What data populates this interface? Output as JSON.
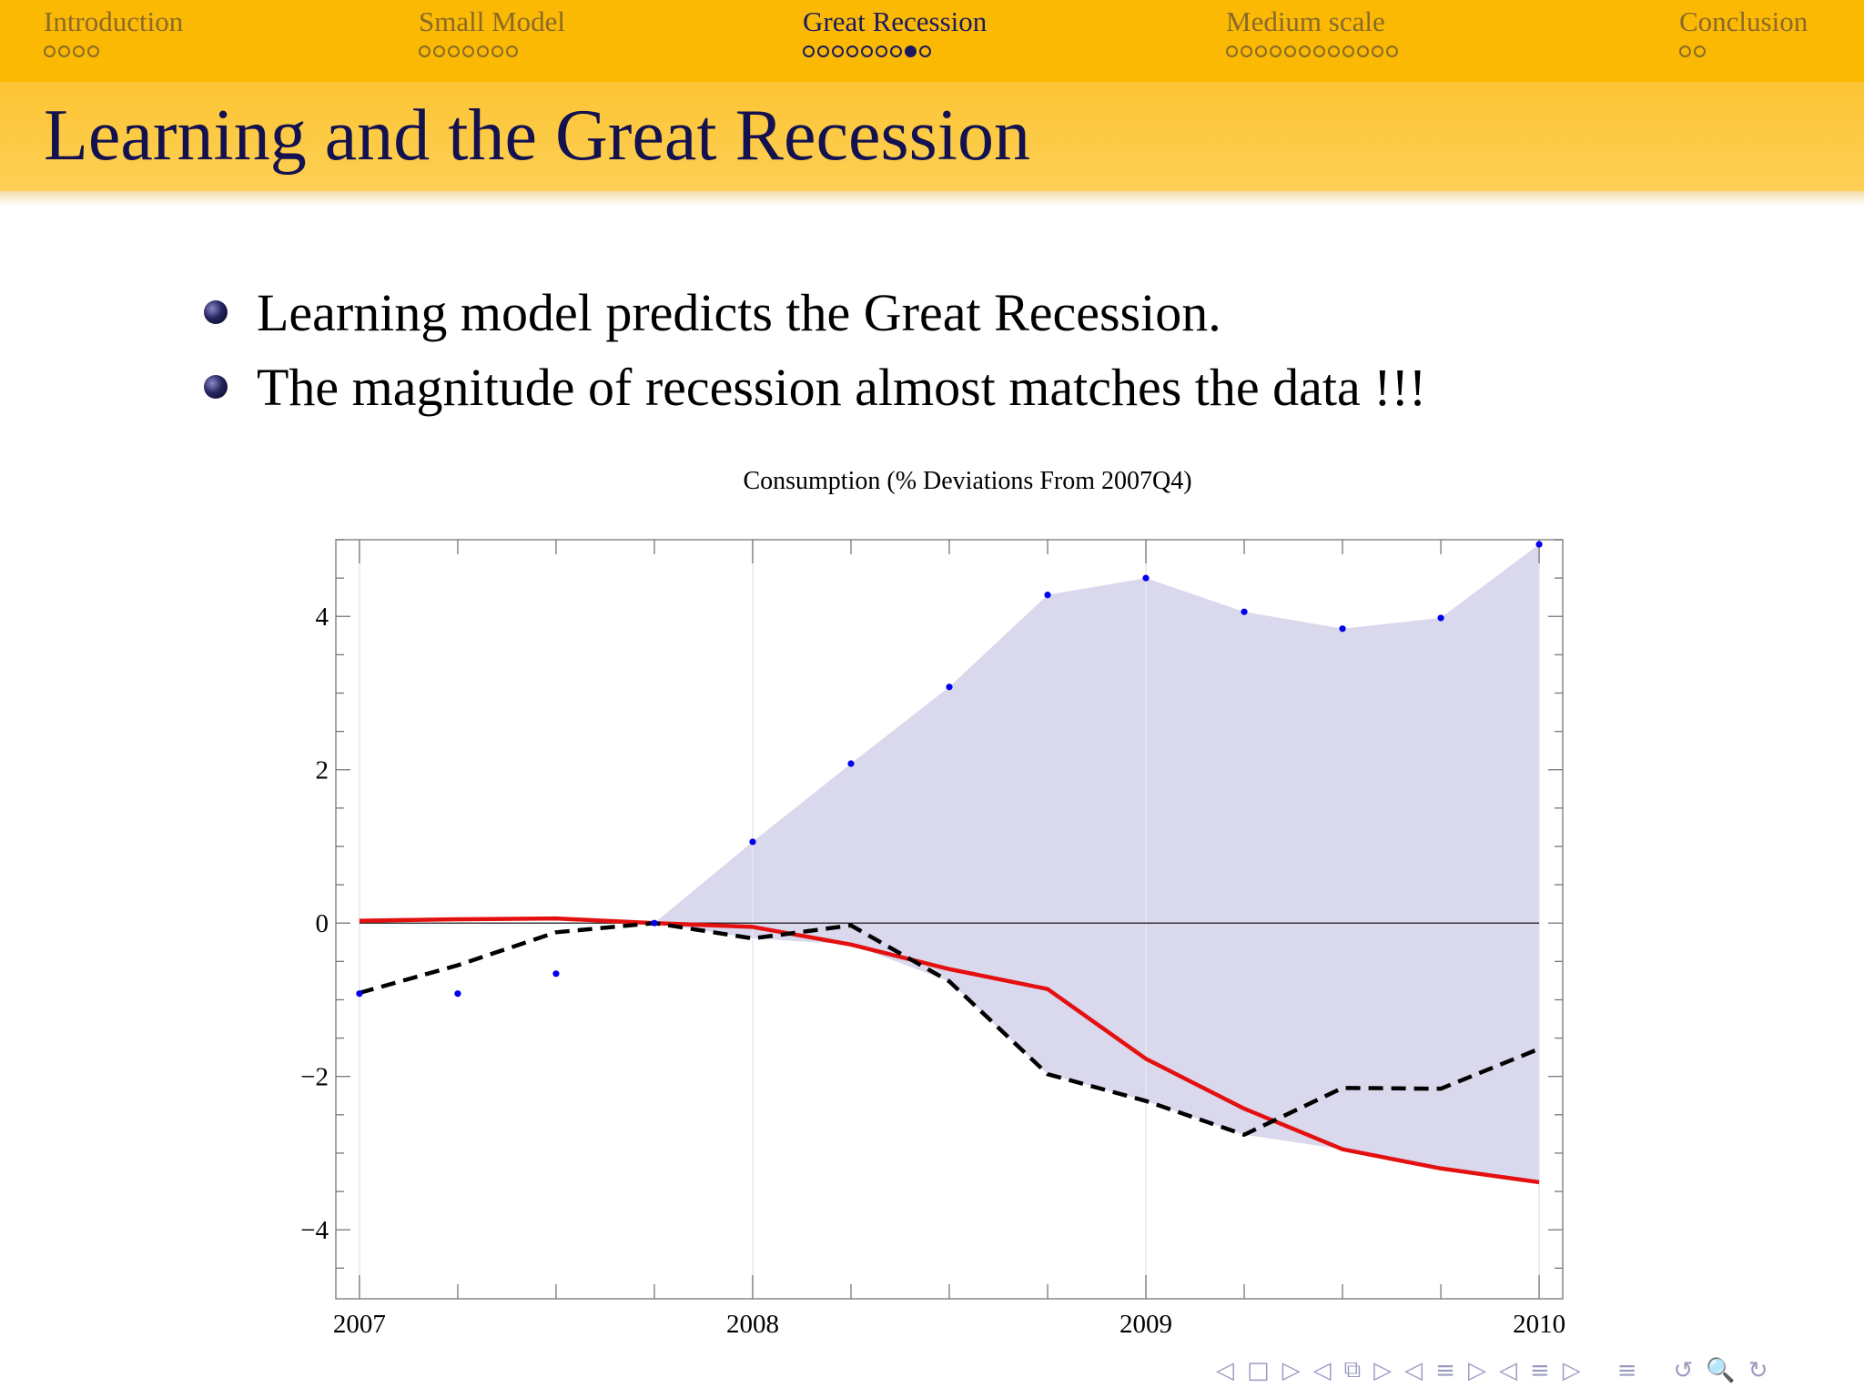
{
  "nav": {
    "sections": [
      {
        "label": "Introduction",
        "dots": 4,
        "filled": []
      },
      {
        "label": "Small Model",
        "dots": 7,
        "filled": []
      },
      {
        "label": "Great Recession",
        "dots": 9,
        "filled": [
          7
        ],
        "current": true
      },
      {
        "label": "Medium scale",
        "dots": 12,
        "filled": []
      },
      {
        "label": "Conclusion",
        "dots": 2,
        "filled": []
      }
    ]
  },
  "frame": {
    "title": "Learning and the Great Recession"
  },
  "bullets": [
    "Learning model predicts the Great Recession.",
    "The magnitude of recession almost matches the data !!!"
  ],
  "chart_data": {
    "type": "line",
    "title": "Consumption (% Deviations From 2007Q4)",
    "xlabel": "",
    "ylabel": "",
    "xlim": [
      2006.94,
      2010.06
    ],
    "ylim": [
      -4.9,
      5.0
    ],
    "xticks": [
      2007,
      2008,
      2009,
      2010
    ],
    "yticks": [
      -4,
      -2,
      0,
      2,
      4
    ],
    "x": [
      2007.0,
      2007.25,
      2007.5,
      2007.75,
      2008.0,
      2008.25,
      2008.5,
      2008.75,
      2009.0,
      2009.25,
      2009.5,
      2009.75,
      2010.0
    ],
    "grid": "vertical lines at year ticks",
    "series": [
      {
        "style": "blue-dots-band-upper",
        "color": "#0000ee",
        "values": [
          -0.92,
          -0.92,
          -0.66,
          0.0,
          1.06,
          2.08,
          3.08,
          4.28,
          4.5,
          4.06,
          3.84,
          3.98,
          4.94
        ]
      },
      {
        "style": "solid",
        "color": "#e41010",
        "values": [
          0.03,
          0.05,
          0.06,
          0.0,
          -0.05,
          -0.28,
          -0.6,
          -0.86,
          -1.77,
          -2.42,
          -2.95,
          -3.2,
          -3.38
        ]
      },
      {
        "style": "dashed",
        "color": "#000000",
        "values": [
          -0.91,
          -0.55,
          -0.12,
          0.0,
          -0.2,
          -0.03,
          -0.76,
          -1.97,
          -2.32,
          -2.76,
          -2.15,
          -2.16,
          -1.64
        ]
      }
    ],
    "band_fill": "#d9d8ec"
  },
  "slide_nav": [
    "◁",
    "□",
    "▷",
    "◁",
    "⧉",
    "▷",
    "◁",
    "≡",
    "▷",
    "◁",
    "≡",
    "▷",
    "≡",
    "↺",
    "🔍",
    "↻"
  ]
}
